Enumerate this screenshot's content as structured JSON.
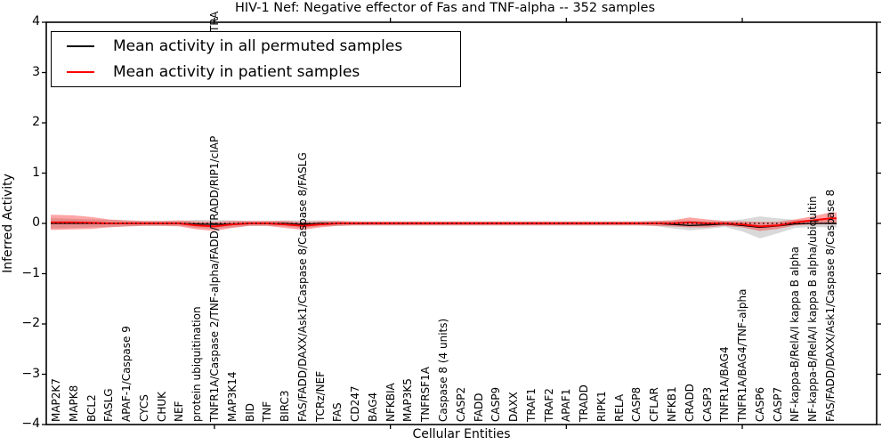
{
  "title": "HIV-1 Nef: Negative effector of Fas and TNF-alpha -- 352 samples",
  "legend": {
    "items": [
      {
        "label": "Mean activity in all permuted samples",
        "color": "#000000"
      },
      {
        "label": "Mean activity in patient samples",
        "color": "#ff0000"
      }
    ]
  },
  "axes": {
    "xlabel": "Cellular Entities",
    "ylabel": "Inferred Activity",
    "y_ticks": [
      "4",
      "3",
      "2",
      "1",
      "0",
      "−1",
      "−2",
      "−3",
      "−4"
    ],
    "ylim": [
      -4,
      4
    ]
  },
  "overflow_label_fragment": "TRA",
  "chart_data": {
    "type": "line",
    "title": "HIV-1 Nef: Negative effector of Fas and TNF-alpha -- 352 samples",
    "xlabel": "Cellular Entities",
    "ylabel": "Inferred Activity",
    "ylim": [
      -4,
      4
    ],
    "grid": false,
    "legend_position": "upper left",
    "reference_line": {
      "y": 0,
      "style": "dotted",
      "color": "#000000"
    },
    "x_major_tick_indices": [
      9,
      19,
      29,
      39
    ],
    "categories": [
      "MAP2K7",
      "MAPK8",
      "BCL2",
      "FASLG",
      "APAF-1/Caspase 9",
      "CYCS",
      "CHUK",
      "NEF",
      "protein ubiquitination",
      "TNFR1A/Caspase 2/TNF-alpha/FADD/TRADD/RIP1/cIAP",
      "MAP3K14",
      "BID",
      "TNF",
      "BIRC3",
      "FAS/FADD/DAXX/Ask1/Caspase 8/Caspase 8/FASLG",
      "TCRz/NEF",
      "FAS",
      "CD247",
      "BAG4",
      "NFKBIA",
      "MAP3K5",
      "TNFRSF1A",
      "Caspase 8 (4 units)",
      "CASP2",
      "FADD",
      "CASP9",
      "DAXX",
      "TRAF1",
      "TRAF2",
      "APAF1",
      "TRADD",
      "RIPK1",
      "RELA",
      "CASP8",
      "CFLAR",
      "NFKB1",
      "CRADD",
      "CASP3",
      "TNFR1A/BAG4",
      "TNFR1A/BAG4/TNF-alpha",
      "CASP6",
      "CASP7",
      "NF-kappa-B/RelA/I kappa B alpha",
      "NF-kappa-B/RelA/I kappa B alpha/ubiquitin",
      "FAS/FADD/DAXX/Ask1/Caspase 8/Caspase 8"
    ],
    "series": [
      {
        "name": "Mean activity in all permuted samples",
        "color": "#000000",
        "style": "solid",
        "band_color": "rgba(0,0,0,0.15)",
        "values": [
          0,
          0,
          0,
          0,
          0,
          0,
          0,
          0,
          -0.01,
          -0.02,
          -0.01,
          0,
          0,
          0,
          -0.02,
          0,
          0,
          0,
          0,
          0,
          0,
          0,
          0,
          0,
          0,
          0,
          0,
          0,
          0,
          0,
          0,
          0,
          0,
          0,
          0,
          -0.02,
          -0.04,
          -0.03,
          -0.01,
          -0.04,
          -0.08,
          -0.05,
          -0.01,
          0,
          0
        ],
        "std": [
          0.1,
          0.09,
          0.08,
          0.07,
          0.06,
          0.05,
          0.05,
          0.05,
          0.08,
          0.09,
          0.07,
          0.05,
          0.05,
          0.06,
          0.08,
          0.06,
          0.05,
          0.04,
          0.04,
          0.04,
          0.04,
          0.04,
          0.04,
          0.04,
          0.04,
          0.04,
          0.04,
          0.04,
          0.04,
          0.04,
          0.04,
          0.04,
          0.04,
          0.04,
          0.05,
          0.08,
          0.1,
          0.08,
          0.06,
          0.12,
          0.22,
          0.15,
          0.08,
          0.07,
          0.08
        ]
      },
      {
        "name": "Mean activity in patient samples",
        "color": "#ff0000",
        "style": "solid",
        "band_color": "rgba(255,0,0,0.35)",
        "values": [
          0.02,
          0.02,
          0.01,
          0,
          0,
          0,
          0,
          0,
          -0.04,
          -0.06,
          -0.02,
          0,
          0,
          -0.02,
          -0.05,
          -0.02,
          0,
          0,
          0,
          0,
          0,
          0,
          0,
          0,
          0,
          0,
          0,
          0,
          0,
          0,
          0,
          0,
          0,
          0,
          0,
          0,
          0.02,
          0,
          0,
          -0.02,
          -0.06,
          -0.04,
          0.02,
          0.06,
          0.1
        ],
        "std": [
          0.15,
          0.14,
          0.12,
          0.08,
          0.06,
          0.05,
          0.05,
          0.06,
          0.08,
          0.09,
          0.07,
          0.05,
          0.05,
          0.07,
          0.08,
          0.06,
          0.05,
          0.04,
          0.04,
          0.04,
          0.04,
          0.04,
          0.04,
          0.04,
          0.04,
          0.04,
          0.04,
          0.04,
          0.04,
          0.04,
          0.04,
          0.04,
          0.04,
          0.04,
          0.05,
          0.06,
          0.1,
          0.08,
          0.05,
          0.06,
          0.09,
          0.07,
          0.06,
          0.08,
          0.12
        ]
      }
    ]
  }
}
